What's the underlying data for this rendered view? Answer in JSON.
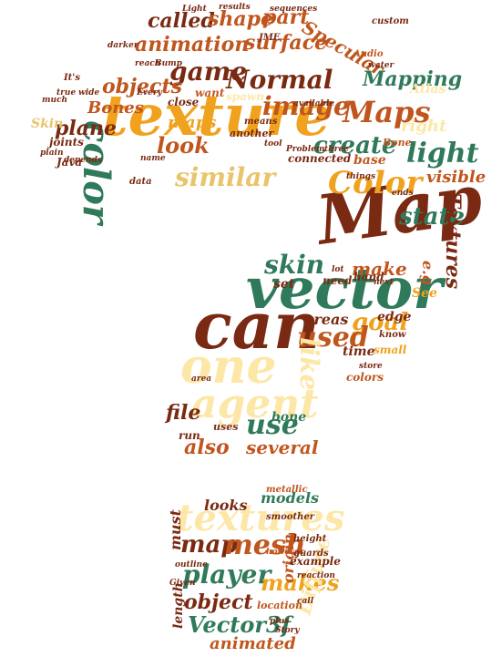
{
  "colors": {
    "rust": "#c0561e",
    "maroon": "#7a2a12",
    "green": "#2f7a5a",
    "gold": "#f0a21e",
    "cream": "#fde7a6",
    "tan": "#e8c46a"
  },
  "words": {
    "texture": "texture",
    "color": "color",
    "map": "Map",
    "vector": "vector",
    "can": "can",
    "one": "one",
    "agent": "agent",
    "textures_bottom": "textures",
    "normal": "Normal",
    "game": "game",
    "objects": "objects",
    "animation": "animation",
    "surface": "surface",
    "called": "called",
    "shape": "shape",
    "part": "part",
    "specular": "Specular",
    "image": "image",
    "maps": "Maps",
    "create": "create",
    "light": "light",
    "color2": "Color",
    "state": "state",
    "look": "look",
    "similar": "similar",
    "plane": "plane",
    "bones": "Bones",
    "mapping": "Mapping",
    "skin": "skin",
    "make": "make",
    "goal": "goal",
    "used": "used",
    "like": "like",
    "areas": "areas",
    "file": "file",
    "use": "use",
    "also": "also",
    "several": "several",
    "run": "run",
    "bone": "bone",
    "textures_side": "Textures",
    "visible": "visible",
    "right": "right",
    "eg": "e.g",
    "map_small": "map",
    "mesh": "mesh",
    "player": "player",
    "makes": "makes",
    "object": "object",
    "vector3f": "Vector3f",
    "animated": "animated",
    "looks": "looks",
    "models": "models",
    "must": "must",
    "origin": "origin",
    "diffuse": "Diffuse",
    "length": "length",
    "example": "example",
    "time": "time",
    "edge": "edge",
    "hand": "hand",
    "set": "set",
    "skin2": "Skin",
    "jme": "JME",
    "every": "Every",
    "its": "It's",
    "java": "Java",
    "data": "data",
    "joints": "joints",
    "maps2": "maps",
    "connected": "connected",
    "base": "base",
    "need": "need",
    "see": "See",
    "small": "small",
    "colors": "colors",
    "uses": "uses",
    "know": "know",
    "custom": "custom",
    "audio": "Audio",
    "water": "water",
    "light2": "Light",
    "results": "results",
    "sequences": "sequences",
    "reach": "reach",
    "bump": "Bump",
    "want": "want",
    "close": "close",
    "means": "means",
    "another": "another",
    "spawn": "spawn",
    "tool": "tool",
    "problem": "Problem",
    "things": "things",
    "three": "three",
    "bone2": "Bone",
    "metallic": "metallic",
    "smoother": "smoother",
    "height": "height",
    "however": "however",
    "guards": "guards",
    "reaction": "reaction",
    "location": "location",
    "call": "call",
    "plus": "plus",
    "story": "Story",
    "outline": "outline",
    "given": "Given",
    "depends": "depends",
    "area": "area",
    "name": "name",
    "true": "true",
    "plain": "plain",
    "store": "store",
    "next": "next",
    "wide": "wide",
    "much": "much",
    "darker": "darker",
    "atlas": "Atlas",
    "lot": "lot",
    "available": "available",
    "ends": "ends"
  }
}
